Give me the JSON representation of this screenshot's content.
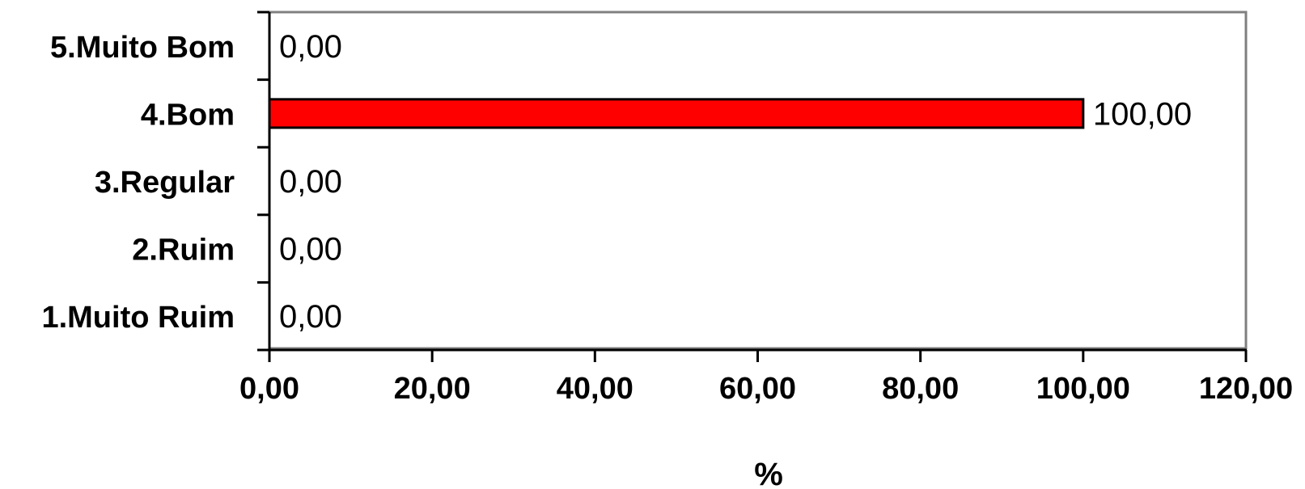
{
  "chart_data": {
    "type": "bar",
    "orientation": "horizontal",
    "categories": [
      "5.Muito Bom",
      "4.Bom",
      "3.Regular",
      "2.Ruim",
      "1.Muito Ruim"
    ],
    "values": [
      0,
      100,
      0,
      0,
      0
    ],
    "value_labels": [
      "0,00",
      "100,00",
      "0,00",
      "0,00",
      "0,00"
    ],
    "xlabel": "%",
    "xlim": [
      0,
      120
    ],
    "xticks": [
      0,
      20,
      40,
      60,
      80,
      100,
      120
    ],
    "xtick_labels": [
      "0,00",
      "20,00",
      "40,00",
      "60,00",
      "80,00",
      "100,00",
      "120,00"
    ],
    "bar_color": "#ff0000",
    "grid": false,
    "legend": "none"
  }
}
